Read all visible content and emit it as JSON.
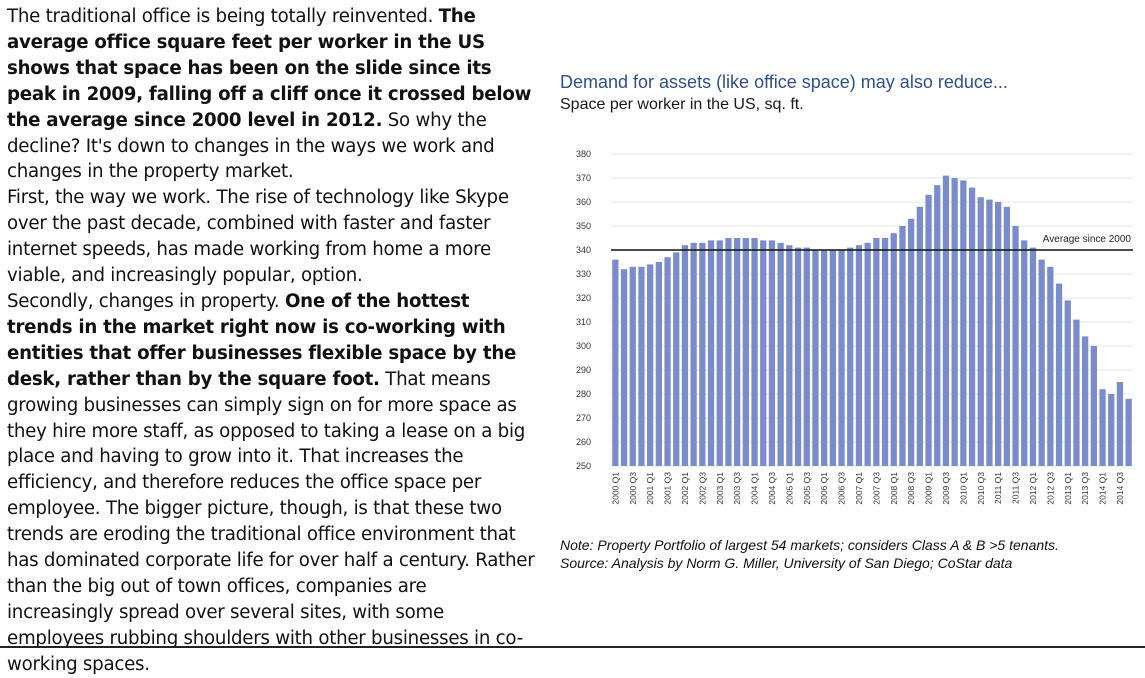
{
  "article": {
    "paragraphs": [
      [
        {
          "text": "The traditional office is being totally reinvented. ",
          "bold": false
        },
        {
          "text": "The average office square feet per worker in the US shows that space has been on the slide since its peak in 2009, falling off a cliff once it crossed below the average since 2000 level in 2012.",
          "bold": true
        },
        {
          "text": " So why the decline? It's down to changes in the ways we work and changes in the property market.",
          "bold": false
        }
      ],
      [
        {
          "text": "First, the way we work. The rise of technology like Skype over the past decade, combined with faster and faster internet speeds, has made working from home a more viable, and increasingly popular, option.",
          "bold": false
        }
      ],
      [
        {
          "text": "Secondly, changes in property. ",
          "bold": false
        },
        {
          "text": "One of the hottest trends in the market right now is co-working with entities that offer businesses flexible space by the desk, rather than by the square foot.",
          "bold": true
        },
        {
          "text": " That means growing businesses can simply sign on for more space as they hire more staff, as opposed to taking a lease on a big place and having to grow into it. That increases the efficiency, and therefore reduces the office space per employee. The bigger picture, though, is that these two trends are eroding the traditional office environment that has dominated corporate life for over half a century. Rather than the big out of town offices, companies are increasingly spread over several sites, with some employees rubbing shoulders with other businesses in co-working spaces.",
          "bold": false
        }
      ]
    ]
  },
  "chart_data": {
    "type": "bar",
    "title": "Demand for assets (like office space) may also reduce...",
    "subtitle": "Space per worker in the US, sq. ft.",
    "note": "Note: Property Portfolio of largest 54 markets; considers Class A & B >5 tenants.",
    "source": "Source:  Analysis by Norm G. Miller, University of San Diego; CoStar data",
    "xlabel": "",
    "ylabel": "",
    "ylim": [
      250,
      380
    ],
    "yticks": [
      250,
      260,
      270,
      280,
      290,
      300,
      310,
      320,
      330,
      340,
      350,
      360,
      370,
      380
    ],
    "grid": true,
    "bar_color": "#7b8ccc",
    "categories": [
      "2000 Q1",
      "2000 Q2",
      "2000 Q3",
      "2000 Q4",
      "2001 Q1",
      "2001 Q2",
      "2001 Q3",
      "2001 Q4",
      "2002 Q1",
      "2002 Q2",
      "2002 Q3",
      "2002 Q4",
      "2003 Q1",
      "2003 Q2",
      "2003 Q3",
      "2003 Q4",
      "2004 Q1",
      "2004 Q2",
      "2004 Q3",
      "2004 Q4",
      "2005 Q1",
      "2005 Q2",
      "2005 Q3",
      "2005 Q4",
      "2006 Q1",
      "2006 Q2",
      "2006 Q3",
      "2006 Q4",
      "2007 Q1",
      "2007 Q2",
      "2007 Q3",
      "2007 Q4",
      "2008 Q1",
      "2008 Q2",
      "2008 Q3",
      "2008 Q4",
      "2009 Q1",
      "2009 Q2",
      "2009 Q3",
      "2009 Q4",
      "2010 Q1",
      "2010 Q2",
      "2010 Q3",
      "2010 Q4",
      "2011 Q1",
      "2011 Q2",
      "2011 Q3",
      "2011 Q4",
      "2012 Q1",
      "2012 Q2",
      "2012 Q3",
      "2012 Q4",
      "2013 Q1",
      "2013 Q2",
      "2013 Q3",
      "2013 Q4",
      "2014 Q1",
      "2014 Q2",
      "2014 Q3",
      "2014 Q4"
    ],
    "tick_labels": [
      "2000 Q1",
      "2000 Q3",
      "2001 Q1",
      "2001 Q3",
      "2002 Q1",
      "2002 Q3",
      "2003 Q1",
      "2003 Q3",
      "2004 Q1",
      "2004 Q3",
      "2005 Q1",
      "2005 Q3",
      "2006 Q1",
      "2006 Q3",
      "2007 Q1",
      "2007 Q3",
      "2008 Q1",
      "2008 Q3",
      "2009 Q1",
      "2009 Q3",
      "2010 Q1",
      "2010 Q3",
      "2011 Q1",
      "2011 Q3",
      "2012 Q1",
      "2012 Q3",
      "2013 Q1",
      "2013 Q3",
      "2014 Q1",
      "2014 Q3"
    ],
    "values": [
      336,
      332,
      333,
      333,
      334,
      335,
      337,
      339,
      342,
      343,
      343,
      344,
      344,
      345,
      345,
      345,
      345,
      344,
      344,
      343,
      342,
      341,
      341,
      340,
      340,
      340,
      340,
      341,
      342,
      343,
      345,
      345,
      347,
      350,
      353,
      358,
      363,
      367,
      371,
      370,
      369,
      366,
      362,
      361,
      360,
      358,
      350,
      344,
      341,
      336,
      333,
      326,
      319,
      311,
      304,
      300,
      282,
      280,
      285,
      278
    ],
    "reference_line": {
      "value": 340,
      "label": "Average since 2000"
    }
  }
}
